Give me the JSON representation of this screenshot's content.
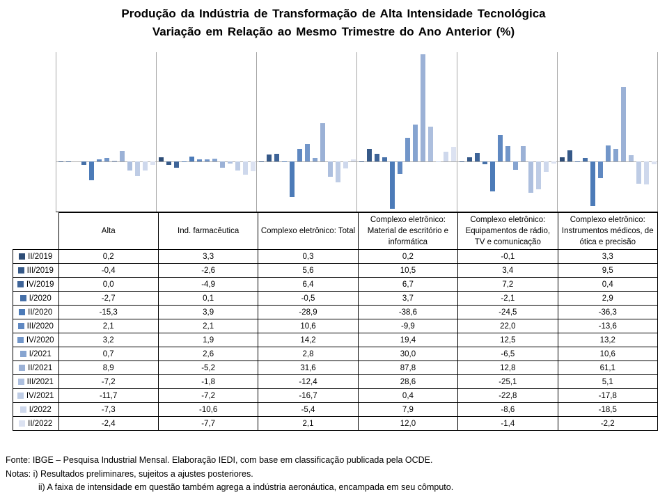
{
  "title": {
    "line1": "Produção da Indústria de Transformação de Alta Intensidade Tecnológica",
    "line2": "Variação em Relação ao Mesmo Trimestre do Ano Anterior (%)"
  },
  "chart_data": {
    "type": "bar",
    "title": "Produção da Indústria de Transformação de Alta Intensidade Tecnológica — Variação em Relação ao Mesmo Trimestre do Ano Anterior (%)",
    "categories": [
      "Alta",
      "Ind. farmacêutica",
      "Complexo eletrônico: Total",
      "Complexo eletrônico: Material de escritório e informática",
      "Complexo eletrônico: Equipamentos de rádio, TV e comunicação",
      "Complexo eletrônico: Instrumentos médicos, de ótica e precisão"
    ],
    "series": [
      {
        "name": "II/2019",
        "color": "#2E4D77",
        "values": [
          0.2,
          3.3,
          0.3,
          0.2,
          -0.1,
          3.3
        ]
      },
      {
        "name": "III/2019",
        "color": "#365988",
        "values": [
          -0.4,
          -2.6,
          5.6,
          10.5,
          3.4,
          9.5
        ]
      },
      {
        "name": "IV/2019",
        "color": "#3E6498",
        "values": [
          0.0,
          -4.9,
          6.4,
          6.7,
          7.2,
          0.4
        ]
      },
      {
        "name": "I/2020",
        "color": "#4670A8",
        "values": [
          -2.7,
          0.1,
          -0.5,
          3.7,
          -2.1,
          2.9
        ]
      },
      {
        "name": "II/2020",
        "color": "#4C7BB8",
        "values": [
          -15.3,
          3.9,
          -28.9,
          -38.6,
          -24.5,
          -36.3
        ]
      },
      {
        "name": "III/2020",
        "color": "#5F88C1",
        "values": [
          2.1,
          2.1,
          10.6,
          -9.9,
          22.0,
          -13.6
        ]
      },
      {
        "name": "IV/2020",
        "color": "#7296C9",
        "values": [
          3.2,
          1.9,
          14.2,
          19.4,
          12.5,
          13.2
        ]
      },
      {
        "name": "I/2021",
        "color": "#86A4D0",
        "values": [
          0.7,
          2.6,
          2.8,
          30.0,
          -6.5,
          10.6
        ]
      },
      {
        "name": "II/2021",
        "color": "#9BB1D6",
        "values": [
          8.9,
          -5.2,
          31.6,
          87.8,
          12.8,
          61.1
        ]
      },
      {
        "name": "III/2021",
        "color": "#ADBFDE",
        "values": [
          -7.2,
          -1.8,
          -12.4,
          28.6,
          -25.1,
          5.1
        ]
      },
      {
        "name": "IV/2021",
        "color": "#BECCE5",
        "values": [
          -11.7,
          -7.2,
          -16.7,
          0.4,
          -22.8,
          -17.8
        ]
      },
      {
        "name": "I/2022",
        "color": "#CED8EC",
        "values": [
          -7.3,
          -10.6,
          -5.4,
          7.9,
          -8.6,
          -18.5
        ]
      },
      {
        "name": "II/2022",
        "color": "#DCE2F1",
        "values": [
          -2.4,
          -7.7,
          2.1,
          12.0,
          -1.4,
          -2.2
        ]
      }
    ],
    "ylim": [
      -40.7,
      89.3
    ],
    "xlabel": "",
    "ylabel": "",
    "grid": "vertical category dividers only, zero line shown, y-axis labels hidden",
    "legend_position": "data-table row labels",
    "value_format": "comma decimal, 1 decimal place"
  },
  "footer": {
    "fonte": "Fonte: IBGE – Pesquisa Industrial Mensal. Elaboração IEDI, com base em classificação publicada pela OCDE.",
    "notas_line1": "Notas: i) Resultados preliminares, sujeitos a ajustes posteriores.",
    "notas_line2": "ii) A faixa de intensidade em questão também agrega a indústria aeronáutica, encampada em seu cômputo."
  },
  "colors": {
    "gridline": "#A6A6A6",
    "axis": "#1A1A1A",
    "table_border": "#000000",
    "background": "#FFFFFF"
  }
}
